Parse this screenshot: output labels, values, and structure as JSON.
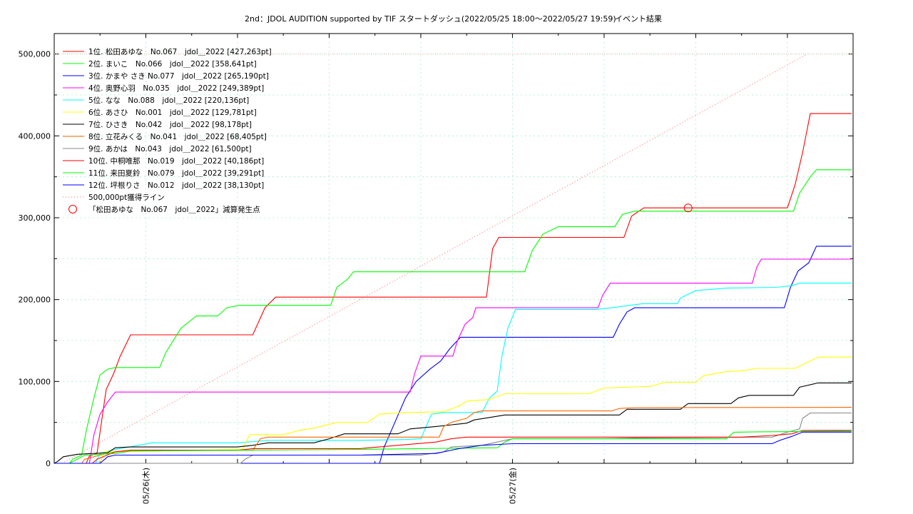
{
  "chart_data": {
    "type": "line",
    "title": "2nd：JDOL AUDITION supported by TIF スタートダッシュ(2022/05/25 18:00〜2022/05/27 19:59)",
    "subtitle": "イベント結果",
    "x_range_hours": [
      0,
      49.98
    ],
    "ylim": [
      0,
      500000
    ],
    "yticks": [
      {
        "value": 0,
        "label": "0"
      },
      {
        "value": 100000,
        "label": "100,000"
      },
      {
        "value": 200000,
        "label": "200,000"
      },
      {
        "value": 300000,
        "label": "300,000"
      },
      {
        "value": 400000,
        "label": "400,000"
      },
      {
        "value": 500000,
        "label": "500,000"
      }
    ],
    "xticks": [
      {
        "hour": 6,
        "label": "05/26(木)"
      },
      {
        "hour": 30,
        "label": "05/27(金)"
      }
    ],
    "grid": true,
    "legend_position": "top-left",
    "series": [
      {
        "name": "1位. 松田あゆな　No.067　jdol＿2022 [427,263pt]",
        "color": "#ff0000",
        "points": [
          [
            0,
            0
          ],
          [
            2.1,
            0
          ],
          [
            2.3,
            9000
          ],
          [
            2.8,
            12000
          ],
          [
            3.4,
            90000
          ],
          [
            3.9,
            110000
          ],
          [
            4.3,
            130000
          ],
          [
            5,
            157000
          ],
          [
            13,
            157000
          ],
          [
            13.8,
            190000
          ],
          [
            14.5,
            203000
          ],
          [
            28.3,
            203000
          ],
          [
            28.7,
            262000
          ],
          [
            29.1,
            276000
          ],
          [
            37.3,
            276000
          ],
          [
            37.8,
            302000
          ],
          [
            38.6,
            312000
          ],
          [
            48,
            312000
          ],
          [
            48.5,
            340000
          ],
          [
            49,
            380000
          ],
          [
            49.5,
            427263
          ],
          [
            52.2,
            427263
          ]
        ]
      },
      {
        "name": "2位. まいこ　No.066　jdol＿2022 [358,641pt]",
        "color": "#00ff00",
        "points": [
          [
            0,
            0
          ],
          [
            1,
            0
          ],
          [
            1.2,
            5000
          ],
          [
            1.8,
            10000
          ],
          [
            2.1,
            40000
          ],
          [
            2.6,
            80000
          ],
          [
            3,
            108000
          ],
          [
            3.5,
            115000
          ],
          [
            4,
            117000
          ],
          [
            6.9,
            117000
          ],
          [
            7.3,
            135000
          ],
          [
            8.3,
            165000
          ],
          [
            9.3,
            180000
          ],
          [
            10.7,
            180000
          ],
          [
            11.3,
            190000
          ],
          [
            12.1,
            193000
          ],
          [
            18.1,
            193000
          ],
          [
            18.5,
            215000
          ],
          [
            19.2,
            225000
          ],
          [
            19.6,
            234000
          ],
          [
            30.8,
            234000
          ],
          [
            31.3,
            260000
          ],
          [
            32,
            280000
          ],
          [
            33,
            289000
          ],
          [
            36.7,
            289000
          ],
          [
            37.2,
            304000
          ],
          [
            38,
            308000
          ],
          [
            48.4,
            308000
          ],
          [
            48.8,
            330000
          ],
          [
            49.5,
            350000
          ],
          [
            49.9,
            358641
          ],
          [
            52.2,
            358641
          ]
        ]
      },
      {
        "name": "3位. かまや さき No.077　jdol＿2022 [265,190pt]",
        "color": "#0000ff",
        "points": [
          [
            0,
            0
          ],
          [
            21.3,
            0
          ],
          [
            21.6,
            20000
          ],
          [
            22.3,
            50000
          ],
          [
            23,
            80000
          ],
          [
            23.7,
            100000
          ],
          [
            24.6,
            115000
          ],
          [
            25.3,
            125000
          ],
          [
            25.9,
            140000
          ],
          [
            26.6,
            154000
          ],
          [
            36.6,
            154000
          ],
          [
            37,
            170000
          ],
          [
            37.5,
            185000
          ],
          [
            38,
            190000
          ],
          [
            47.8,
            190000
          ],
          [
            48.2,
            215000
          ],
          [
            48.7,
            235000
          ],
          [
            49.4,
            245000
          ],
          [
            49.9,
            265190
          ],
          [
            52.2,
            265190
          ]
        ]
      },
      {
        "name": "4位. 奥野心羽　No.035　jdol＿2022 [249,389pt]",
        "color": "#ff00ff",
        "points": [
          [
            0,
            0
          ],
          [
            2.3,
            0
          ],
          [
            2.6,
            35000
          ],
          [
            3,
            60000
          ],
          [
            3.5,
            75000
          ],
          [
            4,
            87000
          ],
          [
            23.3,
            87000
          ],
          [
            23.6,
            110000
          ],
          [
            24,
            131000
          ],
          [
            26.1,
            131000
          ],
          [
            26.4,
            150000
          ],
          [
            26.9,
            170000
          ],
          [
            27.4,
            178000
          ],
          [
            27.6,
            190000
          ],
          [
            35.6,
            190000
          ],
          [
            35.9,
            205000
          ],
          [
            36.4,
            220000
          ],
          [
            45.7,
            220000
          ],
          [
            46,
            240000
          ],
          [
            46.3,
            249389
          ],
          [
            52.2,
            249389
          ]
        ]
      },
      {
        "name": "5位. なな　No.088　jdol＿2022 [220,136pt]",
        "color": "#00ffff",
        "points": [
          [
            0,
            0
          ],
          [
            2.7,
            0
          ],
          [
            3,
            12000
          ],
          [
            4,
            17000
          ],
          [
            6.4,
            25000
          ],
          [
            12,
            25000
          ],
          [
            14,
            28000
          ],
          [
            20,
            28000
          ],
          [
            23,
            29000
          ],
          [
            24,
            30000
          ],
          [
            24.7,
            60000
          ],
          [
            25.4,
            62000
          ],
          [
            28,
            62000
          ],
          [
            28.5,
            80000
          ],
          [
            29,
            88000
          ],
          [
            29.3,
            130000
          ],
          [
            29.7,
            165000
          ],
          [
            30.2,
            188000
          ],
          [
            35.5,
            188000
          ],
          [
            36.5,
            190000
          ],
          [
            38.5,
            195000
          ],
          [
            40.8,
            195000
          ],
          [
            41,
            202000
          ],
          [
            42,
            211000
          ],
          [
            44,
            214000
          ],
          [
            47.3,
            215000
          ],
          [
            48.3,
            217000
          ],
          [
            48.8,
            220136
          ],
          [
            52.2,
            220136
          ]
        ]
      },
      {
        "name": "6位. あさひ　No.001　jdol＿2022 [129,781pt]",
        "color": "#ffff00",
        "points": [
          [
            0,
            0
          ],
          [
            3,
            0
          ],
          [
            3.3,
            14000
          ],
          [
            12.3,
            17000
          ],
          [
            12.8,
            35000
          ],
          [
            15,
            35000
          ],
          [
            16,
            40000
          ],
          [
            17,
            43000
          ],
          [
            18.5,
            50000
          ],
          [
            20.5,
            50000
          ],
          [
            21.3,
            60000
          ],
          [
            23,
            62000
          ],
          [
            25.5,
            63000
          ],
          [
            26.5,
            70000
          ],
          [
            27,
            76000
          ],
          [
            28.5,
            78000
          ],
          [
            29.5,
            85000
          ],
          [
            35,
            85000
          ],
          [
            36,
            92000
          ],
          [
            39,
            94000
          ],
          [
            40,
            99000
          ],
          [
            42,
            99000
          ],
          [
            42.5,
            107000
          ],
          [
            44,
            112000
          ],
          [
            45,
            113000
          ],
          [
            46,
            116000
          ],
          [
            48.5,
            116000
          ],
          [
            49.5,
            125000
          ],
          [
            50,
            129781
          ],
          [
            52.2,
            129781
          ]
        ]
      },
      {
        "name": "7位. ひさき　No.042　jdol＿2022 [98,178pt]",
        "color": "#000000",
        "points": [
          [
            0,
            0
          ],
          [
            0.2,
            2000
          ],
          [
            0.6,
            8000
          ],
          [
            1.5,
            11000
          ],
          [
            3.5,
            13000
          ],
          [
            4,
            19000
          ],
          [
            5,
            20000
          ],
          [
            12,
            20000
          ],
          [
            13,
            22000
          ],
          [
            14,
            25000
          ],
          [
            17,
            25000
          ],
          [
            18,
            30000
          ],
          [
            19,
            36000
          ],
          [
            22.5,
            36000
          ],
          [
            23.3,
            42000
          ],
          [
            25,
            45000
          ],
          [
            27,
            49000
          ],
          [
            27.5,
            53000
          ],
          [
            28.5,
            56000
          ],
          [
            29.5,
            59000
          ],
          [
            37,
            59000
          ],
          [
            37.5,
            66000
          ],
          [
            41,
            66000
          ],
          [
            41.5,
            73000
          ],
          [
            44.3,
            73000
          ],
          [
            44.8,
            80000
          ],
          [
            45.5,
            83000
          ],
          [
            48.4,
            83000
          ],
          [
            48.8,
            93000
          ],
          [
            50,
            98178
          ],
          [
            52.2,
            98178
          ]
        ]
      },
      {
        "name": "8位. 立花みくる　No.041　jdol＿2022 [68,405pt]",
        "color": "#ff6600",
        "points": [
          [
            0,
            0
          ],
          [
            1.8,
            0
          ],
          [
            2,
            5000
          ],
          [
            3,
            10000
          ],
          [
            4,
            14000
          ],
          [
            5,
            16000
          ],
          [
            13,
            16000
          ],
          [
            13.5,
            30000
          ],
          [
            14,
            32000
          ],
          [
            25.2,
            32000
          ],
          [
            25.5,
            45000
          ],
          [
            26,
            50000
          ],
          [
            27,
            55000
          ],
          [
            27.5,
            62000
          ],
          [
            28,
            64000
          ],
          [
            36.5,
            64000
          ],
          [
            37,
            67000
          ],
          [
            38,
            68000
          ],
          [
            52.2,
            68405
          ]
        ]
      },
      {
        "name": "9位. あかは　No.043　jdol＿2022 [61,500pt]",
        "color": "#888888",
        "points": [
          [
            0,
            0
          ],
          [
            12.2,
            0
          ],
          [
            12.5,
            5000
          ],
          [
            13,
            10000
          ],
          [
            20,
            10000
          ],
          [
            24,
            10000
          ],
          [
            25.5,
            14000
          ],
          [
            26,
            20000
          ],
          [
            28,
            22000
          ],
          [
            30,
            30000
          ],
          [
            36,
            30000
          ],
          [
            38,
            31000
          ],
          [
            47,
            32000
          ],
          [
            48,
            38000
          ],
          [
            48.8,
            42000
          ],
          [
            49,
            55000
          ],
          [
            49.5,
            61500
          ],
          [
            52.2,
            61500
          ]
        ]
      },
      {
        "name": "10位. 中桐唯那　No.019　jdol＿2022 [40,186pt]",
        "color": "#ff0000",
        "points": [
          [
            0,
            0
          ],
          [
            2.5,
            0
          ],
          [
            2.8,
            5000
          ],
          [
            4,
            14000
          ],
          [
            5,
            16000
          ],
          [
            12,
            16000
          ],
          [
            13,
            18000
          ],
          [
            20,
            18000
          ],
          [
            25,
            26000
          ],
          [
            26,
            30000
          ],
          [
            27,
            32000
          ],
          [
            45,
            32000
          ],
          [
            47,
            34000
          ],
          [
            48.3,
            36000
          ],
          [
            49,
            40186
          ],
          [
            52.2,
            40186
          ]
        ]
      },
      {
        "name": "11位. 来田夏鈴　No.079　jdol＿2022 [39,291pt]",
        "color": "#00ff00",
        "points": [
          [
            0,
            0
          ],
          [
            1,
            0
          ],
          [
            1.5,
            5000
          ],
          [
            2,
            10000
          ],
          [
            4,
            12000
          ],
          [
            5,
            15000
          ],
          [
            12,
            16000
          ],
          [
            20,
            17000
          ],
          [
            24,
            18000
          ],
          [
            29,
            19000
          ],
          [
            29.5,
            26000
          ],
          [
            30,
            30000
          ],
          [
            44,
            30000
          ],
          [
            44.5,
            38000
          ],
          [
            46,
            38500
          ],
          [
            52.2,
            39291
          ]
        ]
      },
      {
        "name": "12位. 坪根りさ　No.012　jdol＿2022 [38,130pt]",
        "color": "#0000ff",
        "points": [
          [
            0,
            0
          ],
          [
            3,
            0
          ],
          [
            3.5,
            8000
          ],
          [
            4,
            10000
          ],
          [
            12,
            10000
          ],
          [
            20,
            10000
          ],
          [
            25,
            12000
          ],
          [
            26.5,
            18000
          ],
          [
            28,
            22000
          ],
          [
            30,
            24000
          ],
          [
            47,
            24000
          ],
          [
            47.5,
            28000
          ],
          [
            48.3,
            33000
          ],
          [
            49,
            38130
          ],
          [
            52.2,
            38130
          ]
        ]
      }
    ],
    "target_line": {
      "name": "500,000pt獲得ライン",
      "color": "#ff6666",
      "value": 500000
    },
    "event_marker": {
      "name": "「松田あゆな　No.067　jdol＿2022」減算発生点",
      "color": "#ff0000",
      "hour": 41.5,
      "value": 312000
    }
  }
}
